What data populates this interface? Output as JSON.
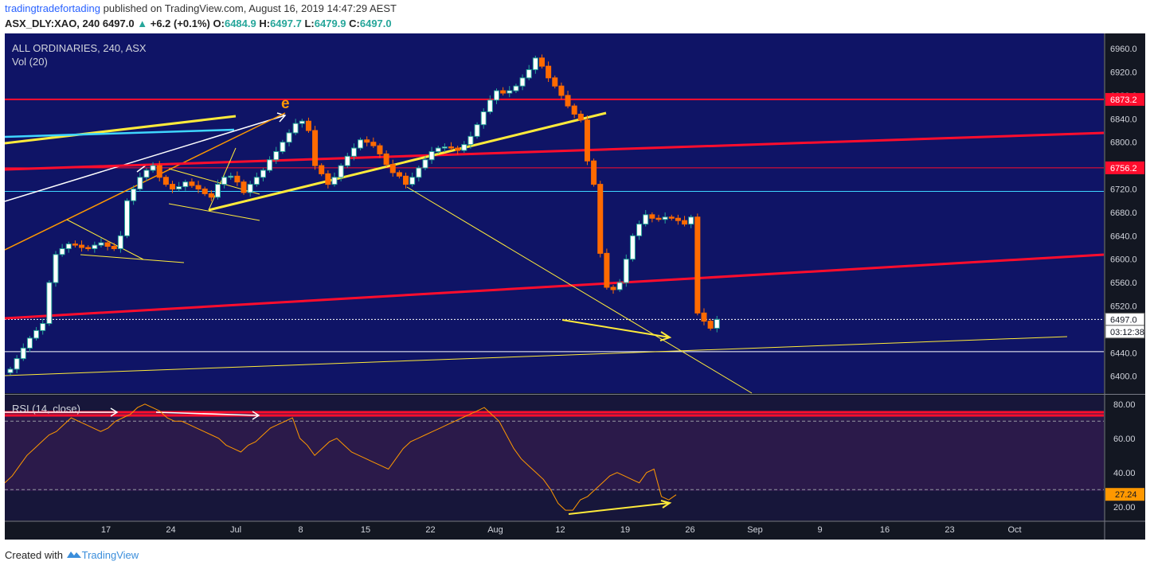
{
  "header": {
    "author": "tradingtradefortading",
    "published": "published on TradingView.com, August 16, 2019 14:47:29 AEST",
    "symbol": "ASX_DLY:XAO, 240",
    "last": "6497.0",
    "change": "+6.2 (+0.1%)",
    "o_label": "O:",
    "o_value": "6484.9",
    "h_label": "H:",
    "h_value": "6497.7",
    "l_label": "L:",
    "l_value": "6479.9",
    "c_label": "C:",
    "c_value": "6497.0"
  },
  "legend": {
    "title": "ALL ORDINARIES, 240, ASX",
    "volume": "Vol (20)",
    "rsi": "RSI (14, close)"
  },
  "annotation_letter": "e",
  "footer": {
    "created_with": "Created with",
    "brand": "TradingView"
  },
  "colors": {
    "background": "#131722",
    "plot": "#0f1466",
    "up": "#26a69a",
    "down": "#ff6a00",
    "red_line": "#ff0d2d",
    "yellow_line": "#ffeb3b",
    "orange_line": "#ff9800",
    "cyan_line": "#3fd6ff"
  },
  "chart_data": [
    {
      "type": "candlestick",
      "title": "ALL ORDINARIES, 240, ASX",
      "y_axis_ticks": [
        6400,
        6440,
        6480,
        6520,
        6560,
        6600,
        6640,
        6680,
        6720,
        6760,
        6800,
        6840,
        6880,
        6920,
        6960
      ],
      "y_axis_labels": [
        "6960.0",
        "6920.0",
        "6880.0",
        "6840.0",
        "6800.0",
        "6760.0",
        "6720.0",
        "6680.0",
        "6640.0",
        "6600.0",
        "6560.0",
        "6520.0",
        "6480.0",
        "6440.0",
        "6400.0"
      ],
      "ylim": [
        6371,
        6986
      ],
      "x_axis_labels": [
        "17",
        "24",
        "Jul",
        "8",
        "15",
        "22",
        "Aug",
        "12",
        "19",
        "26",
        "Sep",
        "9",
        "16",
        "23",
        "Oct"
      ],
      "price_labels": [
        {
          "text": "6873.2",
          "value": 6873.2,
          "color": "#ff0d2d"
        },
        {
          "text": "6756.2",
          "value": 6756.2,
          "color": "#ff0d2d"
        },
        {
          "text": "6497.0",
          "value": 6497.0,
          "color": "#ffffff"
        },
        {
          "text": "03:12:38",
          "value": 6476.0,
          "color": "#ffffff"
        }
      ],
      "horizontal_lines": [
        6873.2,
        6756.2,
        6716.0,
        6442.0
      ],
      "close_series": [
        6412,
        6430,
        6448,
        6465,
        6478,
        6490,
        6560,
        6608,
        6618,
        6626,
        6624,
        6620,
        6618,
        6624,
        6628,
        6622,
        6618,
        6640,
        6700,
        6720,
        6740,
        6752,
        6760,
        6740,
        6728,
        6720,
        6724,
        6732,
        6726,
        6720,
        6712,
        6706,
        6728,
        6740,
        6742,
        6732,
        6714,
        6728,
        6740,
        6752,
        6770,
        6784,
        6800,
        6816,
        6832,
        6836,
        6820,
        6760,
        6746,
        6728,
        6740,
        6760,
        6776,
        6790,
        6804,
        6800,
        6794,
        6780,
        6762,
        6748,
        6742,
        6728,
        6740,
        6756,
        6770,
        6784,
        6790,
        6792,
        6790,
        6786,
        6796,
        6810,
        6830,
        6852,
        6872,
        6888,
        6884,
        6888,
        6896,
        6910,
        6924,
        6944,
        6930,
        6910,
        6896,
        6880,
        6862,
        6848,
        6838,
        6768,
        6728,
        6610,
        6552,
        6548,
        6560,
        6600,
        6640,
        6660,
        6676,
        6670,
        6668,
        6672,
        6670,
        6666,
        6660,
        6672,
        6508,
        6494,
        6482,
        6497
      ]
    },
    {
      "type": "line",
      "title": "RSI (14, close)",
      "y_axis_labels": [
        "80.00",
        "60.00",
        "40.00",
        "20.00"
      ],
      "ylim": [
        12,
        85
      ],
      "last_value_label": "27.24",
      "overbought_line": 70,
      "oversold_line": 30,
      "values": [
        34,
        38,
        44,
        50,
        54,
        58,
        62,
        64,
        68,
        72,
        70,
        68,
        66,
        64,
        66,
        70,
        72,
        74,
        78,
        80,
        78,
        76,
        72,
        70,
        70,
        68,
        66,
        64,
        62,
        60,
        56,
        54,
        52,
        56,
        58,
        62,
        66,
        68,
        70,
        72,
        60,
        56,
        50,
        54,
        58,
        60,
        56,
        52,
        50,
        48,
        46,
        44,
        42,
        48,
        54,
        58,
        60,
        62,
        64,
        66,
        68,
        70,
        72,
        74,
        76,
        78,
        74,
        70,
        62,
        54,
        48,
        44,
        40,
        36,
        30,
        22,
        18,
        18,
        24,
        26,
        30,
        34,
        38,
        40,
        38,
        36,
        34,
        40,
        42,
        26,
        24,
        27
      ]
    }
  ]
}
